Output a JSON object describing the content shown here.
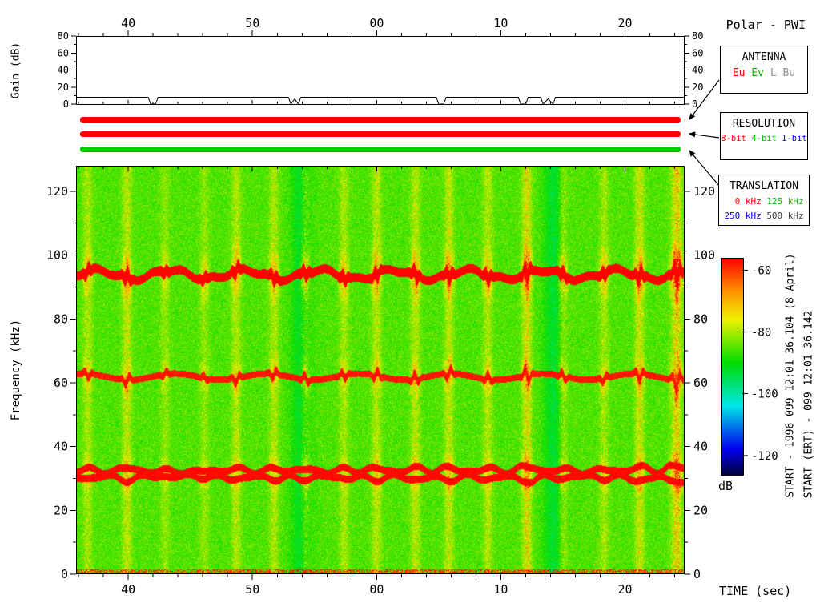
{
  "header": {
    "title": "Polar - PWI"
  },
  "side_labels": {
    "start": "START - 1996 099 12:01 36.104 (8 April)",
    "start_ert": "START (ERT) - 099 12:01 36.142"
  },
  "status_bars": [
    {
      "name": "antenna-selected-bar",
      "color": "#ff0000"
    },
    {
      "name": "resolution-selected-bar",
      "color": "#ff0000"
    },
    {
      "name": "translation-selected-bar",
      "color": "#00cc00"
    }
  ],
  "legend_boxes": [
    {
      "id": "antenna",
      "title": "ANTENNA",
      "pad": 0,
      "rows": [
        [
          {
            "label": "Eu",
            "color": "#ff0000"
          },
          {
            "label": "Ev",
            "color": "#00bb00"
          },
          {
            "label": "L",
            "color": "#8f8f8f"
          },
          {
            "label": "Bu",
            "color": "#8f8f8f"
          }
        ]
      ]
    },
    {
      "id": "resolution",
      "title": "RESOLUTION",
      "pad": 0,
      "rows": [
        [
          {
            "label": "8-bit",
            "color": "#ff0000"
          },
          {
            "label": "4-bit",
            "color": "#00bb00"
          },
          {
            "label": "1-bit",
            "color": "#0000ee"
          }
        ]
      ]
    },
    {
      "id": "translation",
      "title": "TRANSLATION",
      "pad": 7,
      "rows": [
        [
          {
            "label": "0 kHz",
            "color": "#ff0000"
          },
          {
            "label": "125 kHz",
            "color": "#00bb00"
          }
        ],
        [
          {
            "label": "250 kHz",
            "color": "#0000ee"
          },
          {
            "label": "500 kHz",
            "color": "#3a3a3a"
          }
        ]
      ]
    }
  ],
  "time_axis": {
    "label": "TIME (sec)",
    "ticks": [
      {
        "t": 40,
        "label": "40"
      },
      {
        "t": 50,
        "label": "50"
      },
      {
        "t": 60,
        "label": "00"
      },
      {
        "t": 70,
        "label": "10"
      },
      {
        "t": 80,
        "label": "20"
      }
    ],
    "minor_step_sec": 2
  },
  "colormap": [
    [
      0,
      "#000040"
    ],
    [
      0.12,
      "#0000ee"
    ],
    [
      0.32,
      "#00e8e8"
    ],
    [
      0.52,
      "#00dd00"
    ],
    [
      0.72,
      "#f0f000"
    ],
    [
      0.86,
      "#ff8800"
    ],
    [
      1,
      "#ff0000"
    ]
  ],
  "chart_data": [
    {
      "type": "line",
      "title": "Receiver gain vs time",
      "ylabel": "Gain (dB)",
      "ylim": [
        0,
        80
      ],
      "yticks": [
        0,
        20,
        40,
        60,
        80
      ],
      "y_minor_step": 10,
      "x_range_sec": [
        35.8,
        84.8
      ],
      "series": [
        {
          "name": "gain",
          "points": [
            [
              35.8,
              8
            ],
            [
              41.6,
              8
            ],
            [
              41.8,
              0
            ],
            [
              42.2,
              0
            ],
            [
              42.4,
              8
            ],
            [
              52.9,
              8
            ],
            [
              53.1,
              0
            ],
            [
              53.4,
              6
            ],
            [
              53.7,
              0
            ],
            [
              53.9,
              8
            ],
            [
              64.8,
              8
            ],
            [
              65.0,
              0
            ],
            [
              65.4,
              0
            ],
            [
              65.6,
              8
            ],
            [
              71.4,
              8
            ],
            [
              71.6,
              0
            ],
            [
              72.0,
              0
            ],
            [
              72.2,
              8
            ],
            [
              73.2,
              8
            ],
            [
              73.4,
              0
            ],
            [
              73.8,
              6
            ],
            [
              74.2,
              0
            ],
            [
              74.4,
              8
            ],
            [
              84.8,
              8
            ]
          ]
        }
      ]
    },
    {
      "type": "heatmap",
      "title": "Polar PWI spectrogram",
      "ylabel": "Frequency (kHz)",
      "ylim": [
        0,
        128
      ],
      "yticks": [
        0,
        20,
        40,
        60,
        80,
        100,
        120
      ],
      "y_minor_step": 10,
      "x_range_sec": [
        35.8,
        84.8
      ],
      "colorbar": {
        "label": "dB",
        "ticks": [
          -60,
          -80,
          -100,
          -120
        ],
        "vmin": -126,
        "vmax": -56
      },
      "background_db": -88,
      "features": {
        "bands_khz": [
          {
            "center_khz": 94,
            "peak_db": -57
          },
          {
            "center_khz": 62,
            "peak_db": -59
          },
          {
            "center_khz": 31.5,
            "peak_db": -58
          }
        ],
        "burst_interval_sec": 2.9,
        "gap_columns_sec": [
          53.9,
          74.2
        ]
      }
    }
  ]
}
